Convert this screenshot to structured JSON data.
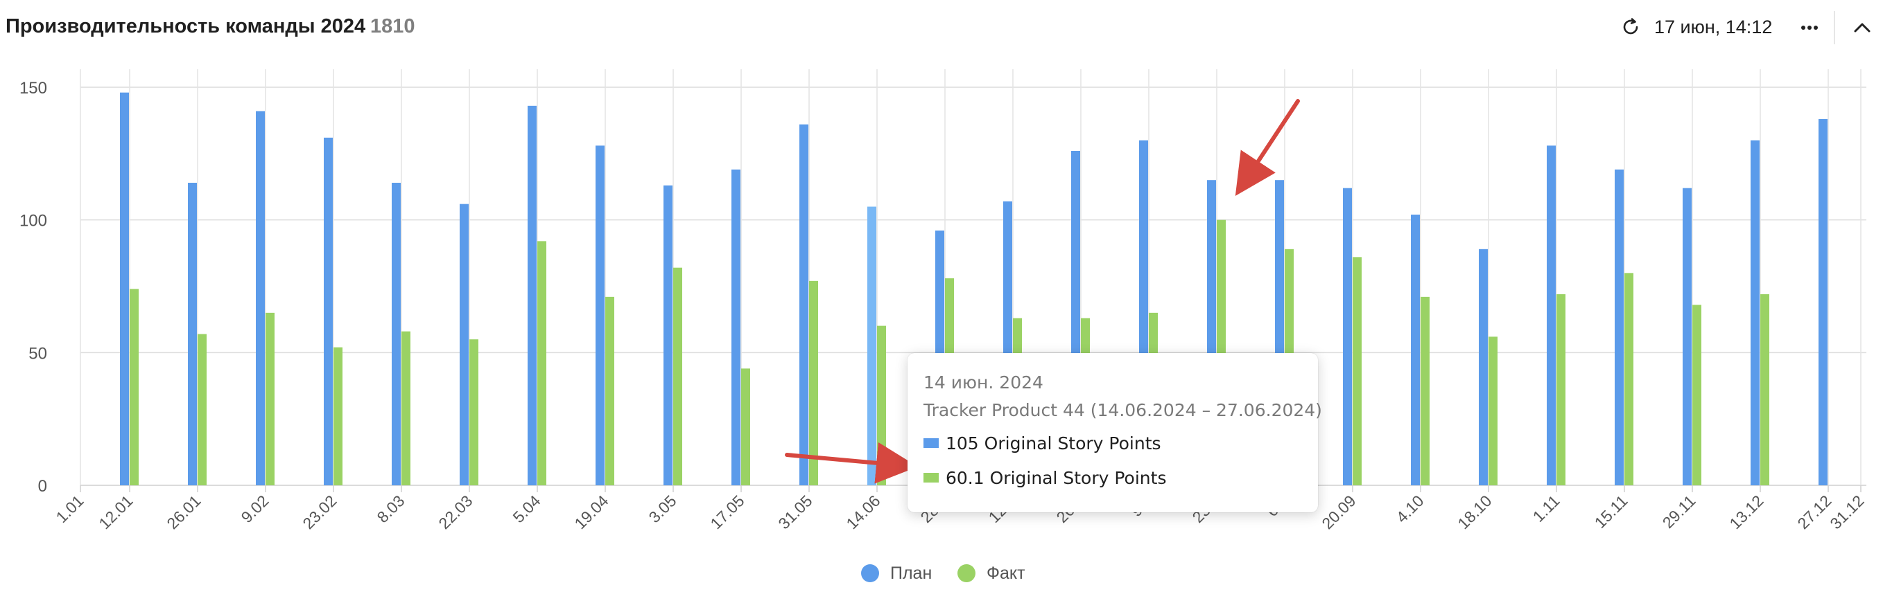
{
  "header": {
    "title": "Производительность команды 2024",
    "count": "1810",
    "updated": "17 июн, 14:12",
    "icons": [
      "refresh-icon",
      "more-icon",
      "chevron-up-icon"
    ]
  },
  "chart_data": {
    "type": "bar",
    "y_ticks": [
      "0",
      "50",
      "100",
      "150"
    ],
    "ylim": [
      0,
      150
    ],
    "x_ticks": [
      "1.01",
      "12.01",
      "26.01",
      "9.02",
      "23.02",
      "8.03",
      "22.03",
      "5.04",
      "19.04",
      "3.05",
      "17.05",
      "31.05",
      "14.06",
      "28.06",
      "12.07",
      "26.07",
      "9.08",
      "23.08",
      "6.09",
      "20.09",
      "4.10",
      "18.10",
      "1.11",
      "15.11",
      "29.11",
      "13.12",
      "27.12",
      "31.12"
    ],
    "x_tick_labels_visible": [
      "1.01",
      "12.01",
      "26.01",
      "9.02",
      "23.02",
      "8.03",
      "22.03",
      "5.04",
      "19.04",
      "3.05",
      "17.05",
      "31.05",
      "14.06",
      "28.0",
      "12.0",
      "26.0",
      "9.0",
      "23.0",
      "6.0",
      "20.09",
      "4.10",
      "18.10",
      "1.11",
      "15.11",
      "29.11",
      "13.12",
      "27.12",
      "31.12"
    ],
    "categories": [
      "12.01",
      "26.01",
      "9.02",
      "23.02",
      "8.03",
      "22.03",
      "5.04",
      "19.04",
      "3.05",
      "17.05",
      "31.05",
      "14.06",
      "28.06",
      "12.07",
      "26.07",
      "9.08",
      "23.08",
      "6.09",
      "20.09",
      "4.10",
      "18.10",
      "1.11",
      "15.11",
      "29.11",
      "13.12",
      "27.12"
    ],
    "series": [
      {
        "name": "План",
        "color": "#5b9bea",
        "values": [
          148,
          114,
          141,
          131,
          114,
          106,
          143,
          128,
          113,
          119,
          136,
          105,
          96,
          107,
          126,
          130,
          115,
          115,
          112,
          102,
          89,
          128,
          119,
          112,
          130,
          138
        ]
      },
      {
        "name": "Факт",
        "color": "#9ad264",
        "values": [
          74,
          57,
          65,
          52,
          58,
          55,
          92,
          71,
          82,
          44,
          77,
          60.1,
          78,
          63,
          63,
          65,
          100,
          89,
          86,
          71,
          56,
          72,
          80,
          68,
          72,
          null
        ]
      }
    ],
    "grid": true,
    "legend_position": "bottom-center",
    "highlight_index": 11,
    "highlight_color": "#79b8f5"
  },
  "tooltip": {
    "date": "14 июн. 2024",
    "subtitle": "Tracker Product 44 (14.06.2024 – 27.06.2024)",
    "rows": [
      {
        "text": "105 Original Story Points",
        "color": "#5b9bea"
      },
      {
        "text": "60.1 Original Story Points",
        "color": "#9ad264"
      }
    ]
  },
  "annotations": {
    "arrow_color": "#d6473f"
  }
}
